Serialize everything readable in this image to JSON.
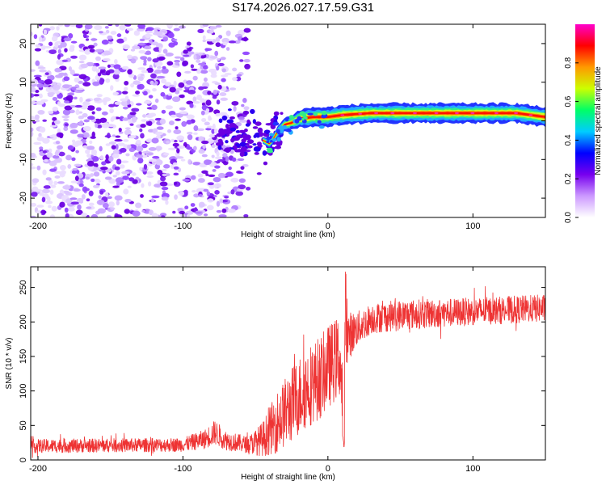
{
  "title": "S174.2026.027.17.59.G31",
  "chart_data": [
    {
      "type": "heatmap",
      "title": "",
      "xlabel": "Height of straight line (km)",
      "ylabel": "Frequency (Hz)",
      "xlim": [
        -205,
        150
      ],
      "ylim": [
        -25,
        25
      ],
      "xticks": [
        -200,
        -100,
        0,
        100
      ],
      "yticks": [
        -20,
        -10,
        0,
        10,
        20
      ],
      "xtick_labels": [
        "-200",
        "-100",
        "0",
        "100"
      ],
      "ytick_labels": [
        "-20",
        "-10",
        "0",
        "10",
        "20"
      ],
      "ridge": {
        "description": "dominant signal frequency vs height",
        "x": [
          -55,
          -45,
          -40,
          -35,
          -30,
          -25,
          -20,
          -10,
          0,
          10,
          30,
          60,
          100,
          130,
          150
        ],
        "y": [
          -3,
          -5,
          -6,
          -3,
          -1,
          -0.5,
          0.5,
          1,
          1,
          1.5,
          2,
          2,
          2,
          2,
          1
        ]
      },
      "noise_region": [
        -205,
        -55
      ],
      "colorbar": {
        "label": "Normalized spectral amplitude",
        "range": [
          0,
          1
        ],
        "ticks": [
          0.0,
          0.2,
          0.4,
          0.6,
          0.8
        ],
        "tick_labels": [
          "0.0",
          "0.2",
          "0.4",
          "0.6",
          "0.8"
        ],
        "colors": [
          "#ffffff",
          "#cc99ff",
          "#7700ee",
          "#0000ff",
          "#00ccff",
          "#00ff66",
          "#ccff00",
          "#ff9900",
          "#ff0000",
          "#ff00cc"
        ]
      }
    },
    {
      "type": "line",
      "title": "",
      "xlabel": "Height of straight line (km)",
      "ylabel": "SNR (10 * v/v)",
      "xlim": [
        -205,
        150
      ],
      "ylim": [
        0,
        280
      ],
      "xticks": [
        -200,
        -100,
        0,
        100
      ],
      "yticks": [
        0,
        50,
        100,
        150,
        200,
        250
      ],
      "xtick_labels": [
        "-200",
        "-100",
        "0",
        "100"
      ],
      "ytick_labels": [
        "0",
        "50",
        "100",
        "150",
        "200",
        "250"
      ],
      "color": "#ee3333",
      "series": [
        {
          "name": "SNR",
          "envelope_x": [
            -205,
            -100,
            -85,
            -78,
            -70,
            -55,
            -45,
            -35,
            -25,
            -15,
            -5,
            0,
            8,
            10,
            12,
            20,
            30,
            50,
            100,
            150
          ],
          "envelope_mean": [
            20,
            22,
            30,
            40,
            28,
            22,
            30,
            55,
            80,
            105,
            120,
            135,
            150,
            90,
            175,
            190,
            205,
            210,
            215,
            220
          ],
          "envelope_spread": [
            10,
            10,
            14,
            18,
            14,
            12,
            25,
            45,
            55,
            60,
            60,
            60,
            60,
            60,
            40,
            25,
            22,
            22,
            20,
            20
          ]
        }
      ]
    }
  ]
}
